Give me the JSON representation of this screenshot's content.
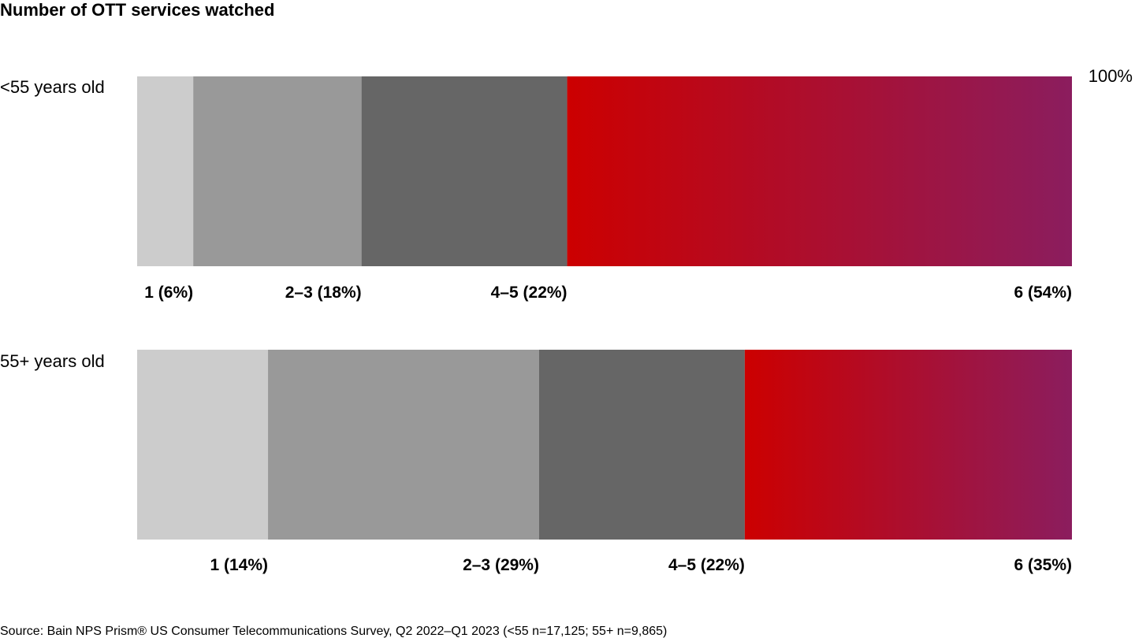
{
  "chart_data": {
    "type": "bar",
    "orientation": "horizontal",
    "stacked": true,
    "title": "Number of OTT services watched",
    "scale_label": "100%",
    "unit": "%",
    "xlim": [
      0,
      100
    ],
    "grid": false,
    "legend": "none",
    "categories": [
      "<55 years old",
      "55+ years old"
    ],
    "series": [
      {
        "name": "1",
        "color": "#cccccc",
        "values": [
          6,
          14
        ],
        "labels": [
          "1 (6%)",
          "1 (14%)"
        ]
      },
      {
        "name": "2–3",
        "color": "#999999",
        "values": [
          18,
          29
        ],
        "labels": [
          "2–3 (18%)",
          "2–3 (29%)"
        ]
      },
      {
        "name": "4–5",
        "color": "#666666",
        "values": [
          22,
          22
        ],
        "labels": [
          "4–5 (22%)",
          "4–5 (22%)"
        ]
      },
      {
        "name": "6",
        "color_gradient": [
          "#cc0000",
          "#8b1d5e"
        ],
        "values": [
          54,
          35
        ],
        "labels": [
          "6 (54%)",
          "6 (35%)"
        ]
      }
    ]
  },
  "source": "Source: Bain NPS Prism® US Consumer Telecommunications Survey, Q2 2022–Q1 2023 (<55 n=17,125; 55+ n=9,865)"
}
